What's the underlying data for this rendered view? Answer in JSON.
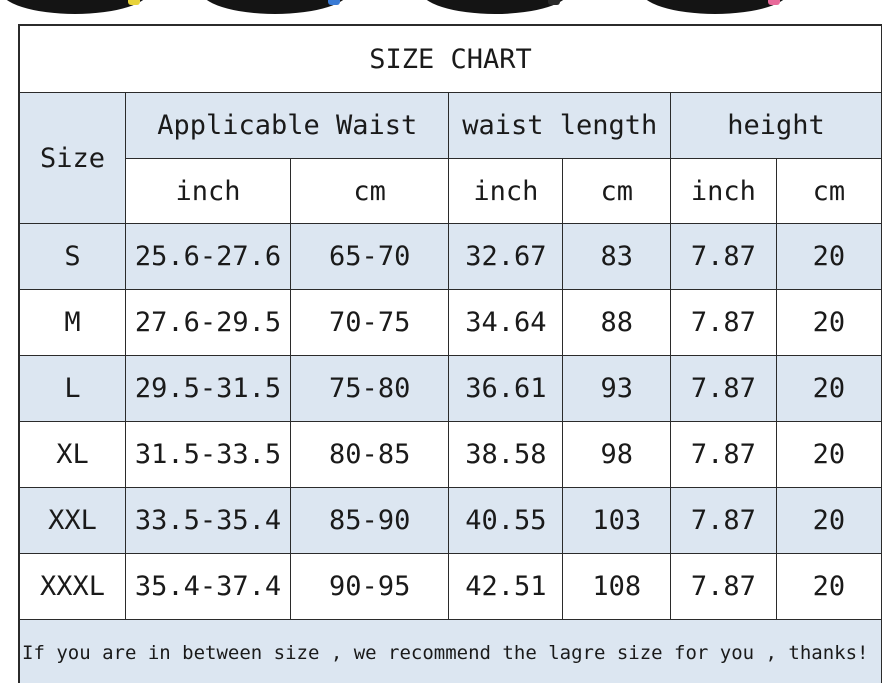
{
  "chart": {
    "title": "SIZE CHART",
    "header": {
      "size": "Size",
      "groups": [
        "Applicable Waist",
        "waist length",
        "height"
      ],
      "units": [
        "inch",
        "cm",
        "inch",
        "cm",
        "inch",
        "cm"
      ]
    },
    "rows": [
      {
        "size": "S",
        "waist_inch": "25.6-27.6",
        "waist_cm": "65-70",
        "length_inch": "32.67",
        "length_cm": "83",
        "height_inch": "7.87",
        "height_cm": "20"
      },
      {
        "size": "M",
        "waist_inch": "27.6-29.5",
        "waist_cm": "70-75",
        "length_inch": "34.64",
        "length_cm": "88",
        "height_inch": "7.87",
        "height_cm": "20"
      },
      {
        "size": "L",
        "waist_inch": "29.5-31.5",
        "waist_cm": "75-80",
        "length_inch": "36.61",
        "length_cm": "93",
        "height_inch": "7.87",
        "height_cm": "20"
      },
      {
        "size": "XL",
        "waist_inch": "31.5-33.5",
        "waist_cm": "80-85",
        "length_inch": "38.58",
        "length_cm": "98",
        "height_inch": "7.87",
        "height_cm": "20"
      },
      {
        "size": "XXL",
        "waist_inch": "33.5-35.4",
        "waist_cm": "85-90",
        "length_inch": "40.55",
        "length_cm": "103",
        "height_inch": "7.87",
        "height_cm": "20"
      },
      {
        "size": "XXXL",
        "waist_inch": "35.4-37.4",
        "waist_cm": "90-95",
        "length_inch": "42.51",
        "length_cm": "108",
        "height_inch": "7.87",
        "height_cm": "20"
      }
    ],
    "note": "If you are in between size , we recommend the lagre size for you , thanks!"
  },
  "colors": {
    "header_bg": "#dce6f1",
    "alt_row_bg": "#dce6f1",
    "border": "#2b2b2b",
    "product_accents": [
      "#e8d33a",
      "#3a7bd5",
      "#2a2a2a",
      "#e86a9a"
    ]
  }
}
